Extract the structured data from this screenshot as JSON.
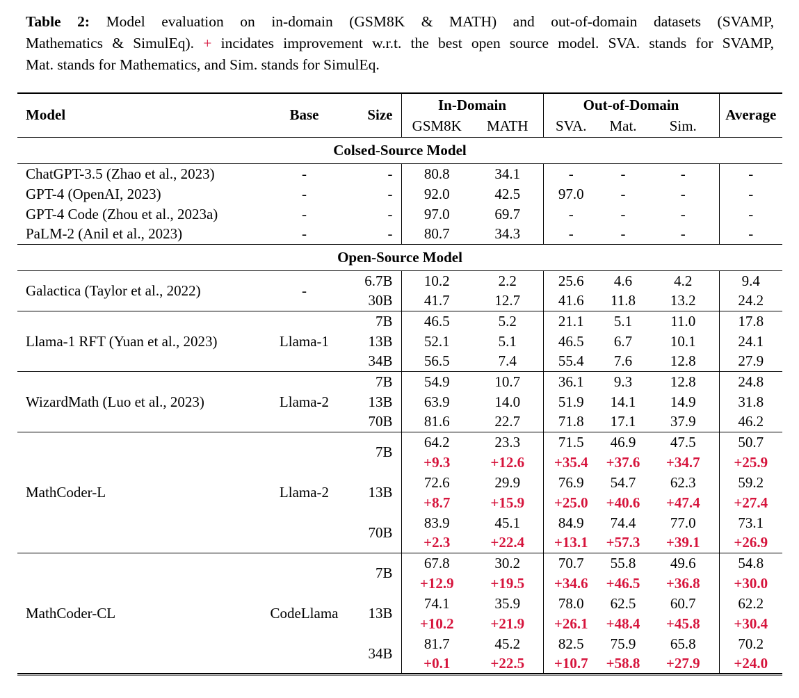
{
  "colors": {
    "accent_red": "#d6143c",
    "rule_black": "#000000"
  },
  "caption": {
    "label": "Table 2:",
    "line1": "Model evaluation on in-domain (GSM8K & MATH) and out-of-domain datasets (SVAMP,",
    "line2_pre": "Mathematics & SimulEq).",
    "plus": "+",
    "line2_post": "incidates improvement w.r.t. the best open source model. SVA. stands for SVAMP,",
    "line3": "Mat. stands for Mathematics, and Sim. stands for SimulEq."
  },
  "table": {
    "header": {
      "model": "Model",
      "base": "Base",
      "size": "Size",
      "in_domain": "In-Domain",
      "out_domain": "Out-of-Domain",
      "sub": [
        "GSM8K",
        "MATH",
        "SVA.",
        "Mat.",
        "Sim."
      ],
      "average": "Average"
    },
    "sections": [
      {
        "title": "Colsed-Source Model",
        "group_dividers": false,
        "groups": [
          {
            "model": "ChatGPT-3.5 (Zhao et al., 2023)",
            "base": "-",
            "rows": [
              {
                "size": "-",
                "values": [
                  "80.8",
                  "34.1",
                  "-",
                  "-",
                  "-",
                  "-"
                ]
              }
            ]
          },
          {
            "model": "GPT-4 (OpenAI, 2023)",
            "base": "-",
            "rows": [
              {
                "size": "-",
                "values": [
                  "92.0",
                  "42.5",
                  "97.0",
                  "-",
                  "-",
                  "-"
                ]
              }
            ]
          },
          {
            "model": "GPT-4 Code (Zhou et al., 2023a)",
            "base": "-",
            "rows": [
              {
                "size": "-",
                "values": [
                  "97.0",
                  "69.7",
                  "-",
                  "-",
                  "-",
                  "-"
                ]
              }
            ]
          },
          {
            "model": "PaLM-2 (Anil et al., 2023)",
            "base": "-",
            "rows": [
              {
                "size": "-",
                "values": [
                  "80.7",
                  "34.3",
                  "-",
                  "-",
                  "-",
                  "-"
                ]
              }
            ]
          }
        ]
      },
      {
        "title": "Open-Source Model",
        "group_dividers": true,
        "groups": [
          {
            "model": "Galactica (Taylor et al., 2022)",
            "base": "-",
            "rows": [
              {
                "size": "6.7B",
                "values": [
                  "10.2",
                  "2.2",
                  "25.6",
                  "4.6",
                  "4.2",
                  "9.4"
                ]
              },
              {
                "size": "30B",
                "values": [
                  "41.7",
                  "12.7",
                  "41.6",
                  "11.8",
                  "13.2",
                  "24.2"
                ]
              }
            ]
          },
          {
            "model": "Llama-1 RFT (Yuan et al., 2023)",
            "base": "Llama-1",
            "rows": [
              {
                "size": "7B",
                "values": [
                  "46.5",
                  "5.2",
                  "21.1",
                  "5.1",
                  "11.0",
                  "17.8"
                ]
              },
              {
                "size": "13B",
                "values": [
                  "52.1",
                  "5.1",
                  "46.5",
                  "6.7",
                  "10.1",
                  "24.1"
                ]
              },
              {
                "size": "34B",
                "values": [
                  "56.5",
                  "7.4",
                  "55.4",
                  "7.6",
                  "12.8",
                  "27.9"
                ]
              }
            ]
          },
          {
            "model": "WizardMath (Luo et al., 2023)",
            "base": "Llama-2",
            "rows": [
              {
                "size": "7B",
                "values": [
                  "54.9",
                  "10.7",
                  "36.1",
                  "9.3",
                  "12.8",
                  "24.8"
                ]
              },
              {
                "size": "13B",
                "values": [
                  "63.9",
                  "14.0",
                  "51.9",
                  "14.1",
                  "14.9",
                  "31.8"
                ]
              },
              {
                "size": "70B",
                "values": [
                  "81.6",
                  "22.7",
                  "71.8",
                  "17.1",
                  "37.9",
                  "46.2"
                ]
              }
            ]
          },
          {
            "model": "MathCoder-L",
            "base": "Llama-2",
            "rows": [
              {
                "size": "7B",
                "values": [
                  "64.2",
                  "23.3",
                  "71.5",
                  "46.9",
                  "47.5",
                  "50.7"
                ],
                "deltas": [
                  "+9.3",
                  "+12.6",
                  "+35.4",
                  "+37.6",
                  "+34.7",
                  "+25.9"
                ]
              },
              {
                "size": "13B",
                "values": [
                  "72.6",
                  "29.9",
                  "76.9",
                  "54.7",
                  "62.3",
                  "59.2"
                ],
                "deltas": [
                  "+8.7",
                  "+15.9",
                  "+25.0",
                  "+40.6",
                  "+47.4",
                  "+27.4"
                ]
              },
              {
                "size": "70B",
                "values": [
                  "83.9",
                  "45.1",
                  "84.9",
                  "74.4",
                  "77.0",
                  "73.1"
                ],
                "deltas": [
                  "+2.3",
                  "+22.4",
                  "+13.1",
                  "+57.3",
                  "+39.1",
                  "+26.9"
                ]
              }
            ]
          },
          {
            "model": "MathCoder-CL",
            "base": "CodeLlama",
            "rows": [
              {
                "size": "7B",
                "values": [
                  "67.8",
                  "30.2",
                  "70.7",
                  "55.8",
                  "49.6",
                  "54.8"
                ],
                "deltas": [
                  "+12.9",
                  "+19.5",
                  "+34.6",
                  "+46.5",
                  "+36.8",
                  "+30.0"
                ]
              },
              {
                "size": "13B",
                "values": [
                  "74.1",
                  "35.9",
                  "78.0",
                  "62.5",
                  "60.7",
                  "62.2"
                ],
                "deltas": [
                  "+10.2",
                  "+21.9",
                  "+26.1",
                  "+48.4",
                  "+45.8",
                  "+30.4"
                ]
              },
              {
                "size": "34B",
                "values": [
                  "81.7",
                  "45.2",
                  "82.5",
                  "75.9",
                  "65.8",
                  "70.2"
                ],
                "deltas": [
                  "+0.1",
                  "+22.5",
                  "+10.7",
                  "+58.8",
                  "+27.9",
                  "+24.0"
                ]
              }
            ]
          }
        ]
      }
    ]
  }
}
